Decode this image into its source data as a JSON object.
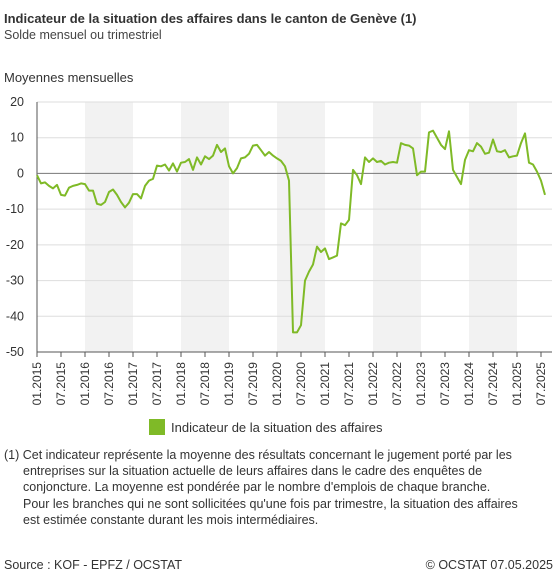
{
  "header": {
    "title": "Indicateur de la situation des affaires dans le canton de Genève (1)",
    "subtitle": "Solde mensuel ou trimestriel",
    "panel_label": "Moyennes mensuelles"
  },
  "legend": {
    "label": "Indicateur de la situation des affaires"
  },
  "footnote": {
    "line1": "(1) Cet indicateur représente la moyenne des résultats concernant le jugement porté par les",
    "line2": "entreprises sur la situation actuelle de leurs affaires dans le cadre des enquêtes de",
    "line3": "conjoncture. La moyenne est pondérée par le nombre d'emplois de chaque branche.",
    "line4": "Pour les branches qui ne sont sollicitées qu'une fois par trimestre, la situation des affaires",
    "line5": "est estimée constante durant les mois intermédiaires."
  },
  "footer": {
    "source": "Source : KOF - EPFZ / OCSTAT",
    "copyright": "© OCSTAT 07.05.2025"
  },
  "chart_data": {
    "type": "line",
    "title": "Indicateur de la situation des affaires dans le canton de Genève (1)",
    "ylim": [
      -50,
      20
    ],
    "yticks": [
      20,
      10,
      0,
      -10,
      -20,
      -30,
      -40,
      -50
    ],
    "xticks": [
      "01.2015",
      "07.2015",
      "01.2016",
      "07.2016",
      "01.2017",
      "07.2017",
      "01.2018",
      "07.2018",
      "01.2019",
      "07.2019",
      "01.2020",
      "07.2020",
      "01.2021",
      "07.2021",
      "01.2022",
      "07.2022",
      "01.2023",
      "07.2023",
      "01.2024",
      "07.2024",
      "01.2025",
      "07.2025"
    ],
    "grid": "horizontal",
    "shaded_bands": "alternating years",
    "zero_line": true,
    "colors": {
      "series": "#7fba27",
      "band": "#f2f2f2",
      "grid": "#dddddd",
      "zero": "#777777",
      "axis": "#555555"
    },
    "series": [
      {
        "name": "Indicateur de la situation des affaires",
        "x_start": "01.2015",
        "frequency": "monthly",
        "values": [
          -0.5,
          -2.8,
          -2.5,
          -3.5,
          -4.2,
          -3.2,
          -6.0,
          -6.2,
          -4.0,
          -3.5,
          -3.2,
          -2.8,
          -3.0,
          -4.8,
          -4.8,
          -8.5,
          -8.8,
          -8.0,
          -5.2,
          -4.5,
          -6.0,
          -8.0,
          -9.5,
          -8.2,
          -5.8,
          -5.8,
          -7.0,
          -3.5,
          -2.0,
          -1.5,
          2.2,
          2.0,
          2.5,
          0.8,
          2.8,
          0.5,
          3.0,
          3.2,
          4.0,
          1.0,
          4.5,
          2.5,
          4.8,
          4.0,
          5.0,
          8.0,
          6.0,
          7.0,
          2.0,
          0.0,
          1.5,
          4.2,
          4.5,
          5.5,
          7.8,
          8.0,
          6.5,
          5.0,
          6.0,
          5.0,
          4.2,
          3.5,
          2.0,
          -2.0,
          -44.5,
          -44.5,
          -42.5,
          -30.0,
          -27.5,
          -25.5,
          -20.5,
          -22.0,
          -21.0,
          -24.0,
          -23.5,
          -23.0,
          -14.0,
          -14.5,
          -13.0,
          1.0,
          -0.5,
          -3.0,
          4.5,
          3.2,
          4.2,
          3.2,
          3.5,
          2.5,
          3.0,
          3.2,
          3.0,
          8.5,
          8.0,
          7.8,
          7.0,
          -0.5,
          0.5,
          0.5,
          11.5,
          12.0,
          10.0,
          8.0,
          6.8,
          11.8,
          1.0,
          -1.0,
          -3.0,
          3.8,
          6.5,
          6.2,
          8.5,
          7.5,
          5.5,
          5.8,
          9.5,
          6.2,
          6.0,
          6.5,
          4.5,
          4.8,
          5.0,
          8.5,
          11.2,
          3.0,
          2.5,
          0.5,
          -2.0,
          -6.0
        ]
      }
    ]
  }
}
